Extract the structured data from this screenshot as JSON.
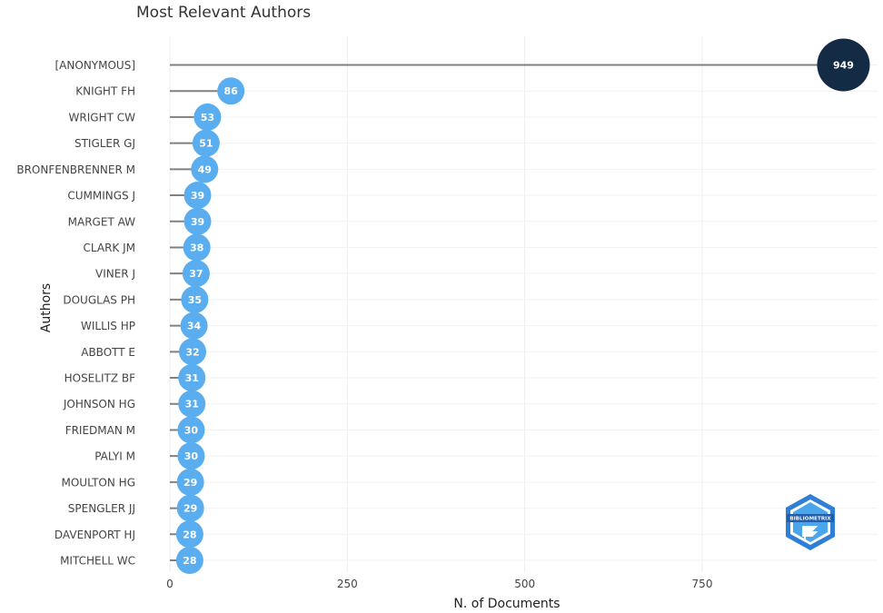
{
  "chart_data": {
    "type": "lollipop",
    "title": "Most Relevant Authors",
    "xlabel": "N. of Documents",
    "ylabel": "Authors",
    "xlim": [
      0,
      955
    ],
    "xticks": [
      0,
      250,
      500,
      750
    ],
    "grid": true,
    "categories": [
      "[ANONYMOUS]",
      "KNIGHT FH",
      "WRIGHT CW",
      "STIGLER GJ",
      "BRONFENBRENNER M",
      "CUMMINGS J",
      "MARGET AW",
      "CLARK JM",
      "VINER J",
      "DOUGLAS PH",
      "WILLIS HP",
      "ABBOTT E",
      "HOSELITZ BF",
      "JOHNSON HG",
      "FRIEDMAN M",
      "PALYI M",
      "MOULTON HG",
      "SPENGLER JJ",
      "DAVENPORT HJ",
      "MITCHELL WC"
    ],
    "values": [
      949,
      86,
      53,
      51,
      49,
      39,
      39,
      38,
      37,
      35,
      34,
      32,
      31,
      31,
      30,
      30,
      29,
      29,
      28,
      28
    ],
    "colors": {
      "highlight": "#142b46",
      "default": "#5aaef0",
      "stem": "#808080"
    }
  },
  "logo": {
    "text": "BIBLIOMETRIX",
    "color": "#3a8fe0"
  }
}
